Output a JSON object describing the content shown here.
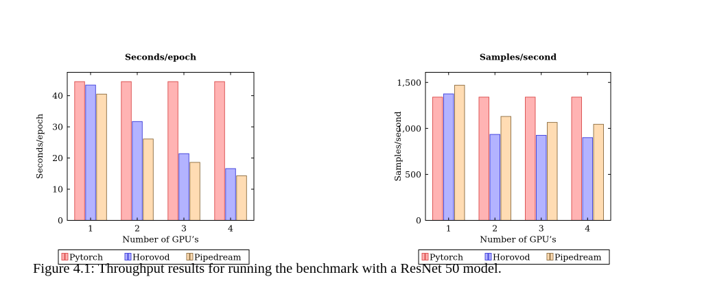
{
  "chart_data": [
    {
      "type": "bar",
      "title": "Seconds/epoch",
      "xlabel": "Number of GPU’s",
      "ylabel": "Seconds/epoch",
      "categories": [
        "1",
        "2",
        "3",
        "4"
      ],
      "ylim": [
        0,
        47.5
      ],
      "yticks": [
        0,
        10,
        20,
        30,
        40
      ],
      "ytick_labels": [
        "0",
        "10",
        "20",
        "30",
        "40"
      ],
      "grid": false,
      "legend_position": "bottom",
      "series": [
        {
          "name": "Pytorch",
          "values": [
            44.5,
            44.5,
            44.5,
            44.5
          ],
          "color": "#ffb3b3",
          "stroke": "#d94848"
        },
        {
          "name": "Horovod",
          "values": [
            43.4,
            31.7,
            21.4,
            16.6
          ],
          "color": "#b3b3ff",
          "stroke": "#3a3ad9"
        },
        {
          "name": "Pipedream",
          "values": [
            40.5,
            26.1,
            18.6,
            14.3
          ],
          "color": "#ffdcb3",
          "stroke": "#8a6a3c"
        }
      ]
    },
    {
      "type": "bar",
      "title": "Samples/second",
      "xlabel": "Number of GPU’s",
      "ylabel": "Samples/second",
      "categories": [
        "1",
        "2",
        "3",
        "4"
      ],
      "ylim": [
        0,
        1610
      ],
      "yticks": [
        0,
        500,
        1000,
        1500
      ],
      "ytick_labels": [
        "0",
        "500",
        "1,000",
        "1,500"
      ],
      "grid": false,
      "legend_position": "bottom",
      "series": [
        {
          "name": "Pytorch",
          "values": [
            1340,
            1340,
            1340,
            1340
          ],
          "color": "#ffb3b3",
          "stroke": "#d94848"
        },
        {
          "name": "Horovod",
          "values": [
            1375,
            935,
            925,
            900
          ],
          "color": "#b3b3ff",
          "stroke": "#3a3ad9"
        },
        {
          "name": "Pipedream",
          "values": [
            1470,
            1130,
            1065,
            1045
          ],
          "color": "#ffdcb3",
          "stroke": "#8a6a3c"
        }
      ]
    }
  ],
  "caption": "Figure 4.1: Throughput results for running the benchmark with a ResNet 50 model."
}
